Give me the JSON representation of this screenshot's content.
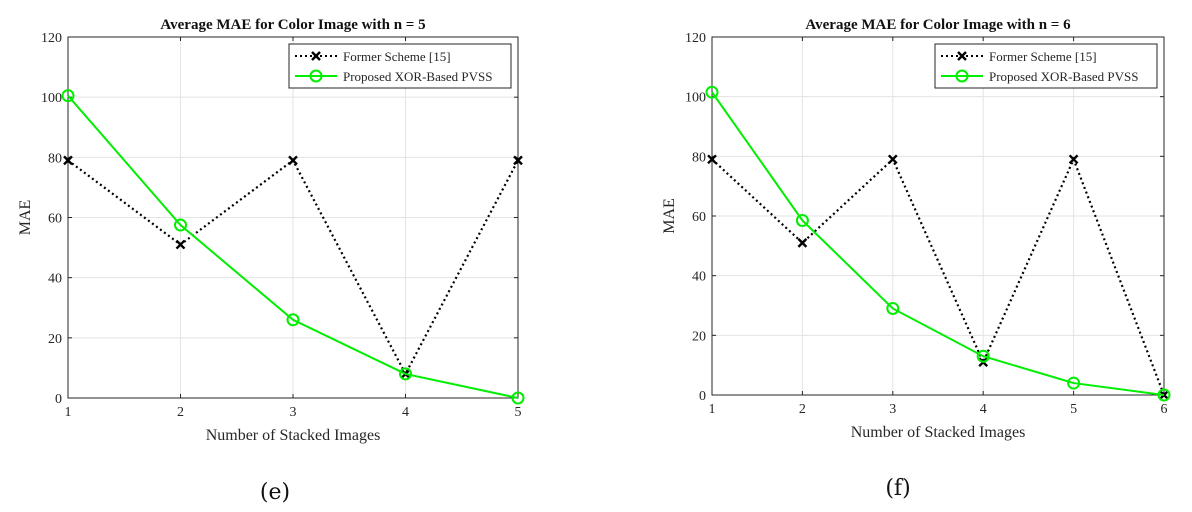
{
  "chart_data": [
    {
      "type": "line",
      "title": "Average MAE for Color Image with n = 5",
      "xlabel": "Number of Stacked Images",
      "ylabel": "MAE",
      "x": [
        1,
        2,
        3,
        4,
        5
      ],
      "xlim": [
        1,
        5
      ],
      "ylim": [
        0,
        120
      ],
      "xticks": [
        "1",
        "2",
        "3",
        "4",
        "5"
      ],
      "yticks": [
        "0",
        "20",
        "40",
        "60",
        "80",
        "100",
        "120"
      ],
      "grid": true,
      "legend_position": "top-right",
      "series": [
        {
          "name": "Former Scheme [15]",
          "values": [
            79,
            51,
            79,
            8,
            79
          ],
          "color": "#000000",
          "style": "dotted",
          "marker": "x"
        },
        {
          "name": "Proposed XOR-Based PVSS",
          "values": [
            100.5,
            57.5,
            26,
            8,
            0
          ],
          "color": "#00ee00",
          "style": "solid",
          "marker": "circle"
        }
      ],
      "caption": "(e)"
    },
    {
      "type": "line",
      "title": "Average MAE for Color Image with n = 6",
      "xlabel": "Number of Stacked Images",
      "ylabel": "MAE",
      "x": [
        1,
        2,
        3,
        4,
        5,
        6
      ],
      "xlim": [
        1,
        6
      ],
      "ylim": [
        0,
        120
      ],
      "xticks": [
        "1",
        "2",
        "3",
        "4",
        "5",
        "6"
      ],
      "yticks": [
        "0",
        "20",
        "40",
        "60",
        "80",
        "100",
        "120"
      ],
      "grid": true,
      "legend_position": "top-right",
      "series": [
        {
          "name": "Former Scheme [15]",
          "values": [
            79,
            51,
            79,
            11,
            79,
            0
          ],
          "color": "#000000",
          "style": "dotted",
          "marker": "x"
        },
        {
          "name": "Proposed XOR-Based PVSS",
          "values": [
            101.5,
            58.5,
            29,
            13,
            4,
            0
          ],
          "color": "#00ee00",
          "style": "solid",
          "marker": "circle"
        }
      ],
      "caption": "(f)"
    }
  ]
}
